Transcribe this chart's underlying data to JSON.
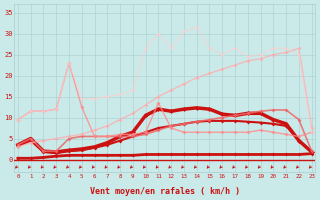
{
  "bg_color": "#caeaea",
  "grid_color": "#aacccc",
  "x_label": "Vent moyen/en rafales ( km/h )",
  "x_ticks": [
    0,
    1,
    2,
    3,
    4,
    5,
    6,
    7,
    8,
    9,
    10,
    11,
    12,
    13,
    14,
    15,
    16,
    17,
    18,
    19,
    20,
    21,
    22,
    23
  ],
  "y_ticks": [
    0,
    5,
    10,
    15,
    20,
    25,
    30,
    35
  ],
  "ylim": [
    -3,
    37
  ],
  "xlim": [
    -0.3,
    23.3
  ],
  "lines": [
    {
      "x": [
        0,
        1,
        2,
        3,
        4,
        5,
        6,
        7,
        8,
        9,
        10,
        11,
        12,
        13,
        14,
        15,
        16,
        17,
        18,
        19,
        20,
        21,
        22,
        23
      ],
      "y": [
        0.3,
        0.3,
        0.5,
        0.8,
        1.0,
        1.0,
        1.0,
        1.0,
        1.0,
        1.0,
        1.2,
        1.2,
        1.2,
        1.2,
        1.2,
        1.2,
        1.2,
        1.2,
        1.2,
        1.2,
        1.2,
        1.2,
        1.2,
        1.4
      ],
      "color": "#cc1111",
      "lw": 2.0,
      "marker": "D",
      "ms": 2.0,
      "alpha": 1.0
    },
    {
      "x": [
        0,
        1,
        2,
        3,
        4,
        5,
        6,
        7,
        8,
        9,
        10,
        11,
        12,
        13,
        14,
        15,
        16,
        17,
        18,
        19,
        20,
        21,
        22,
        23
      ],
      "y": [
        3.2,
        4.5,
        1.8,
        1.5,
        2.0,
        2.2,
        2.8,
        3.5,
        4.5,
        5.5,
        6.5,
        7.5,
        8.0,
        8.5,
        9.0,
        9.2,
        9.2,
        9.2,
        9.0,
        8.8,
        8.5,
        8.0,
        4.5,
        1.8
      ],
      "color": "#cc1111",
      "lw": 1.5,
      "marker": "D",
      "ms": 2.0,
      "alpha": 1.0
    },
    {
      "x": [
        0,
        1,
        2,
        3,
        4,
        5,
        6,
        7,
        8,
        9,
        10,
        11,
        12,
        13,
        14,
        15,
        16,
        17,
        18,
        19,
        20,
        21,
        22,
        23
      ],
      "y": [
        3.5,
        5.0,
        2.0,
        1.8,
        2.2,
        2.5,
        3.0,
        4.0,
        5.5,
        6.5,
        10.5,
        12.0,
        11.5,
        12.0,
        12.3,
        12.0,
        10.8,
        10.5,
        11.0,
        11.0,
        9.5,
        8.5,
        4.5,
        1.8
      ],
      "color": "#cc1111",
      "lw": 2.5,
      "marker": "D",
      "ms": 2.5,
      "alpha": 1.0
    },
    {
      "x": [
        0,
        1,
        2,
        3,
        4,
        5,
        6,
        7,
        8,
        9,
        10,
        11,
        12,
        13,
        14,
        15,
        16,
        17,
        18,
        19,
        20,
        21,
        22,
        23
      ],
      "y": [
        3.5,
        5.0,
        2.0,
        2.0,
        5.0,
        5.5,
        5.5,
        5.5,
        5.5,
        5.5,
        6.0,
        7.0,
        8.0,
        8.5,
        9.0,
        9.5,
        10.0,
        10.5,
        11.0,
        11.5,
        11.8,
        11.8,
        9.5,
        2.0
      ],
      "color": "#ee6666",
      "lw": 1.2,
      "marker": "D",
      "ms": 2.0,
      "alpha": 0.85
    },
    {
      "x": [
        0,
        1,
        2,
        3,
        4,
        5,
        6,
        7,
        8,
        9,
        10,
        11,
        12,
        13,
        14,
        15,
        16,
        17,
        18,
        19,
        20,
        21,
        22,
        23
      ],
      "y": [
        9.5,
        11.5,
        11.5,
        12.0,
        23.0,
        12.5,
        5.5,
        5.5,
        6.0,
        6.0,
        6.5,
        13.5,
        7.5,
        6.5,
        6.5,
        6.5,
        6.5,
        6.5,
        6.5,
        7.0,
        6.5,
        6.0,
        5.5,
        6.5
      ],
      "color": "#ff8888",
      "lw": 1.0,
      "marker": "D",
      "ms": 2.0,
      "alpha": 0.8
    },
    {
      "x": [
        0,
        1,
        2,
        3,
        4,
        5,
        6,
        7,
        8,
        9,
        10,
        11,
        12,
        13,
        14,
        15,
        16,
        17,
        18,
        19,
        20,
        21,
        22,
        23
      ],
      "y": [
        3.0,
        4.0,
        4.5,
        5.0,
        5.5,
        6.0,
        7.0,
        8.0,
        9.5,
        11.0,
        13.0,
        15.0,
        16.5,
        18.0,
        19.5,
        20.5,
        21.5,
        22.5,
        23.5,
        24.0,
        25.0,
        25.5,
        26.5,
        7.5
      ],
      "color": "#ffaaaa",
      "lw": 1.0,
      "marker": "D",
      "ms": 2.0,
      "alpha": 0.75
    },
    {
      "x": [
        0,
        1,
        2,
        3,
        4,
        5,
        6,
        7,
        8,
        9,
        10,
        11,
        12,
        13,
        14,
        15,
        16,
        17,
        18,
        19,
        20,
        21,
        22,
        23
      ],
      "y": [
        9.5,
        11.5,
        11.5,
        12.0,
        23.0,
        14.5,
        14.5,
        15.0,
        15.5,
        16.5,
        26.5,
        30.0,
        26.5,
        30.5,
        31.5,
        26.5,
        25.0,
        26.5,
        24.5,
        25.0,
        26.5,
        26.5,
        25.0,
        6.5
      ],
      "color": "#ffcccc",
      "lw": 0.8,
      "marker": "D",
      "ms": 1.8,
      "alpha": 0.7
    }
  ],
  "arrow_color": "#cc1111",
  "label_color": "#cc1111",
  "hline_y": 0,
  "hline_color": "#cc1111",
  "hline_lw": 1.0
}
